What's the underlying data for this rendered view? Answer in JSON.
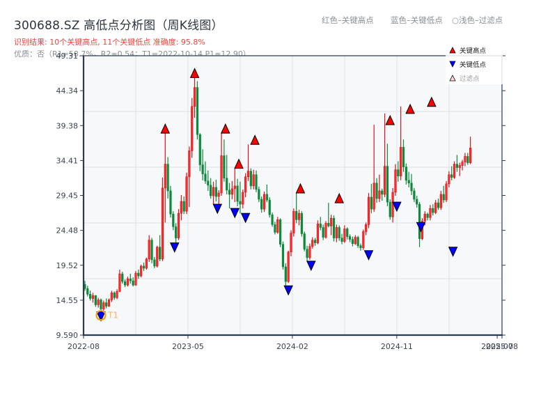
{
  "header": {
    "title": "300688.SZ 高低点分析图（周K线图）",
    "summary": "识别结果: 10个关键高点, 11个关键低点  准确度: 95.8%",
    "quality": "优质：否（R1=58.7%，R2=0.54；T1=2022-10-14 P1=12.90）",
    "legend_top": {
      "red": "红色–关键高点",
      "blue": "蓝色–关键低点",
      "light": "○浅色–过滤点"
    }
  },
  "colors": {
    "up": "#d9141b",
    "down": "#0b8a3a",
    "high_marker": "#ff0000",
    "low_marker": "#0000ff",
    "t1_ring": "#f29c1f",
    "axis": "#2c3a4e",
    "grid": "#e3e6ea",
    "plot_bg": "#f7f8fa"
  },
  "chart_data": {
    "type": "candlestick",
    "title": "300688.SZ 高低点分析图（周K线图）",
    "xlabel": "",
    "ylabel": "",
    "ylim": [
      9.59,
      49.31
    ],
    "yticks": [
      "9.590",
      "14.55",
      "19.52",
      "24.48",
      "29.45",
      "34.41",
      "39.38",
      "44.34",
      "49.31"
    ],
    "ytick_values": [
      9.59,
      14.55,
      19.52,
      24.48,
      29.45,
      34.41,
      39.38,
      44.34,
      49.31
    ],
    "xticks": [
      "2022-08",
      "2023-05",
      "2024-02",
      "2024-11",
      "2025-07",
      "2025-08"
    ],
    "xtick_weeks": [
      0,
      39,
      78,
      117,
      154.5,
      156.3
    ],
    "grid": true,
    "legend": {
      "position": "upper right",
      "entries": [
        "关键高点",
        "关键低点",
        "过滤点"
      ]
    },
    "annotation": {
      "label": "T1",
      "week": 6.5,
      "price": 12.9
    },
    "key_highs": [
      {
        "week": 30.5,
        "price": 38.3
      },
      {
        "week": 41.5,
        "price": 46.2
      },
      {
        "week": 53,
        "price": 38.3
      },
      {
        "week": 58,
        "price": 33.3
      },
      {
        "week": 64,
        "price": 36.7
      },
      {
        "week": 81,
        "price": 29.8
      },
      {
        "week": 95.5,
        "price": 28.4
      },
      {
        "week": 114.5,
        "price": 39.5
      },
      {
        "week": 122,
        "price": 41.1
      },
      {
        "week": 130,
        "price": 42.1
      }
    ],
    "key_lows": [
      {
        "week": 6.5,
        "price": 12.9
      },
      {
        "week": 34,
        "price": 22.7
      },
      {
        "week": 50,
        "price": 28.2
      },
      {
        "week": 56.5,
        "price": 27.6
      },
      {
        "week": 60.5,
        "price": 26.9
      },
      {
        "week": 76.5,
        "price": 16.6
      },
      {
        "week": 85,
        "price": 20.1
      },
      {
        "week": 106.5,
        "price": 21.6
      },
      {
        "week": 117,
        "price": 28.5
      },
      {
        "week": 126,
        "price": 25.6
      },
      {
        "week": 138,
        "price": 22.1
      }
    ],
    "candles": [
      [
        16.8,
        17.3,
        15.9,
        16.2
      ],
      [
        16.2,
        16.6,
        15.1,
        15.4
      ],
      [
        15.4,
        15.9,
        14.5,
        14.8
      ],
      [
        14.8,
        15.6,
        14.2,
        15.2
      ],
      [
        15.2,
        15.3,
        13.6,
        13.9
      ],
      [
        13.9,
        14.9,
        13.5,
        14.6
      ],
      [
        14.6,
        14.8,
        12.9,
        13.3
      ],
      [
        13.3,
        14.5,
        13.1,
        14.2
      ],
      [
        14.2,
        14.8,
        13.4,
        13.7
      ],
      [
        13.7,
        14.8,
        13.6,
        14.6
      ],
      [
        14.6,
        15.9,
        14.3,
        15.6
      ],
      [
        15.6,
        15.8,
        14.6,
        14.9
      ],
      [
        14.9,
        16.1,
        14.7,
        15.8
      ],
      [
        15.8,
        18.9,
        15.7,
        18.3
      ],
      [
        18.3,
        18.6,
        16.9,
        17.2
      ],
      [
        17.2,
        17.5,
        16.4,
        16.7
      ],
      [
        16.7,
        17.9,
        16.5,
        17.6
      ],
      [
        17.6,
        18.3,
        16.9,
        17.3
      ],
      [
        17.3,
        17.8,
        16.5,
        16.7
      ],
      [
        16.7,
        18.7,
        16.6,
        18.4
      ],
      [
        18.4,
        18.9,
        17.6,
        18.0
      ],
      [
        18.0,
        19.6,
        17.8,
        19.4
      ],
      [
        19.4,
        19.9,
        18.7,
        19.1
      ],
      [
        19.1,
        20.6,
        18.9,
        20.4
      ],
      [
        20.4,
        23.8,
        20.0,
        23.1
      ],
      [
        23.1,
        23.4,
        19.8,
        20.3
      ],
      [
        20.3,
        20.7,
        19.1,
        19.4
      ],
      [
        19.4,
        22.3,
        19.2,
        22.1
      ],
      [
        22.1,
        23.8,
        20.1,
        20.4
      ],
      [
        20.4,
        32.0,
        20.1,
        30.5
      ],
      [
        30.5,
        38.3,
        25.6,
        33.9
      ],
      [
        33.9,
        34.9,
        29.0,
        30.1
      ],
      [
        30.1,
        30.8,
        26.3,
        26.8
      ],
      [
        26.8,
        27.2,
        24.5,
        25.0
      ],
      [
        25.0,
        25.5,
        22.7,
        23.4
      ],
      [
        23.4,
        27.5,
        23.1,
        26.9
      ],
      [
        26.9,
        29.5,
        25.9,
        28.6
      ],
      [
        28.6,
        29.3,
        26.8,
        27.2
      ],
      [
        27.2,
        32.7,
        26.8,
        32.1
      ],
      [
        32.1,
        36.4,
        27.8,
        35.8
      ],
      [
        35.8,
        43.3,
        34.8,
        42.1
      ],
      [
        42.1,
        46.2,
        40.5,
        44.8
      ],
      [
        44.8,
        45.7,
        37.4,
        38.1
      ],
      [
        38.1,
        38.3,
        32.9,
        33.8
      ],
      [
        33.8,
        36.0,
        31.6,
        32.5
      ],
      [
        32.5,
        34.3,
        31.1,
        31.5
      ],
      [
        31.5,
        33.0,
        30.1,
        30.9
      ],
      [
        30.9,
        31.9,
        29.0,
        29.4
      ],
      [
        29.4,
        31.4,
        28.2,
        30.6
      ],
      [
        30.6,
        31.7,
        28.6,
        29.3
      ],
      [
        29.3,
        30.2,
        28.0,
        29.8
      ],
      [
        29.8,
        38.3,
        29.4,
        35.1
      ],
      [
        35.1,
        37.4,
        31.4,
        31.9
      ],
      [
        31.9,
        35.2,
        29.6,
        30.2
      ],
      [
        30.2,
        31.2,
        27.6,
        29.6
      ],
      [
        29.6,
        31.5,
        28.9,
        30.4
      ],
      [
        30.4,
        33.3,
        28.5,
        30.8
      ],
      [
        30.8,
        31.8,
        27.9,
        28.6
      ],
      [
        28.6,
        31.4,
        26.9,
        28.2
      ],
      [
        28.2,
        30.3,
        27.6,
        29.9
      ],
      [
        29.9,
        32.6,
        29.2,
        32.1
      ],
      [
        32.1,
        36.7,
        31.5,
        32.9
      ],
      [
        32.9,
        33.3,
        30.3,
        30.8
      ],
      [
        30.8,
        33.1,
        30.3,
        32.4
      ],
      [
        32.4,
        33.0,
        29.9,
        30.3
      ],
      [
        30.3,
        30.7,
        28.5,
        28.9
      ],
      [
        28.9,
        29.3,
        27.0,
        27.5
      ],
      [
        27.5,
        30.0,
        27.1,
        29.6
      ],
      [
        29.6,
        31.0,
        28.5,
        28.8
      ],
      [
        28.8,
        29.2,
        26.3,
        26.7
      ],
      [
        26.7,
        27.0,
        25.0,
        25.3
      ],
      [
        25.3,
        25.7,
        23.9,
        24.2
      ],
      [
        24.2,
        26.4,
        24.0,
        26.0
      ],
      [
        26.0,
        26.2,
        22.1,
        22.5
      ],
      [
        22.5,
        22.9,
        18.9,
        19.3
      ],
      [
        19.3,
        19.8,
        16.6,
        17.2
      ],
      [
        17.2,
        21.6,
        17.0,
        21.4
      ],
      [
        21.4,
        24.5,
        20.8,
        24.1
      ],
      [
        24.1,
        27.6,
        23.6,
        27.2
      ],
      [
        27.2,
        29.8,
        25.5,
        26.0
      ],
      [
        26.0,
        27.4,
        25.2,
        26.9
      ],
      [
        26.9,
        27.2,
        23.6,
        24.0
      ],
      [
        24.0,
        24.3,
        21.5,
        21.8
      ],
      [
        21.8,
        22.3,
        20.1,
        20.6
      ],
      [
        20.6,
        22.6,
        20.3,
        22.2
      ],
      [
        22.2,
        23.5,
        21.9,
        23.1
      ],
      [
        23.1,
        23.4,
        22.3,
        22.7
      ],
      [
        22.7,
        25.9,
        22.5,
        25.4
      ],
      [
        25.4,
        26.4,
        24.5,
        24.9
      ],
      [
        24.9,
        25.3,
        23.1,
        23.5
      ],
      [
        23.5,
        25.8,
        23.3,
        25.5
      ],
      [
        25.5,
        28.4,
        24.9,
        25.1
      ],
      [
        25.1,
        26.7,
        23.8,
        26.2
      ],
      [
        26.2,
        26.6,
        22.9,
        23.4
      ],
      [
        23.4,
        25.3,
        22.8,
        24.9
      ],
      [
        24.9,
        25.2,
        23.0,
        23.4
      ],
      [
        23.4,
        24.0,
        22.5,
        22.9
      ],
      [
        22.9,
        25.2,
        22.7,
        24.7
      ],
      [
        24.7,
        24.9,
        23.2,
        23.6
      ],
      [
        23.6,
        23.9,
        22.8,
        23.2
      ],
      [
        23.2,
        23.6,
        22.2,
        22.6
      ],
      [
        22.6,
        23.8,
        22.4,
        23.5
      ],
      [
        23.5,
        23.7,
        22.0,
        22.3
      ],
      [
        22.3,
        22.6,
        21.6,
        22.0
      ],
      [
        22.0,
        24.6,
        21.7,
        24.3
      ],
      [
        24.3,
        25.6,
        23.8,
        25.3
      ],
      [
        25.3,
        29.8,
        24.8,
        29.2
      ],
      [
        29.2,
        31.1,
        26.9,
        27.5
      ],
      [
        27.5,
        39.5,
        27.1,
        31.2
      ],
      [
        31.2,
        31.9,
        28.4,
        29.0
      ],
      [
        29.0,
        32.4,
        28.5,
        30.1
      ],
      [
        30.1,
        30.4,
        28.7,
        29.6
      ],
      [
        29.6,
        41.1,
        29.2,
        33.6
      ],
      [
        33.6,
        36.8,
        27.9,
        28.5
      ],
      [
        28.5,
        28.9,
        26.0,
        26.4
      ],
      [
        26.4,
        30.5,
        25.6,
        29.9
      ],
      [
        29.9,
        33.9,
        29.4,
        33.1
      ],
      [
        33.1,
        34.3,
        31.4,
        32.2
      ],
      [
        32.2,
        42.1,
        31.6,
        36.3
      ],
      [
        36.3,
        37.4,
        32.8,
        33.5
      ],
      [
        33.5,
        34.0,
        31.0,
        31.6
      ],
      [
        31.6,
        32.8,
        30.6,
        31.2
      ],
      [
        31.2,
        32.5,
        29.5,
        30.1
      ],
      [
        30.1,
        30.5,
        28.5,
        28.9
      ],
      [
        28.9,
        29.4,
        27.7,
        28.2
      ],
      [
        28.2,
        28.5,
        22.1,
        23.3
      ],
      [
        23.3,
        26.2,
        23.1,
        25.8
      ],
      [
        25.8,
        27.2,
        25.2,
        26.8
      ],
      [
        26.8,
        27.0,
        25.9,
        26.3
      ],
      [
        26.3,
        28.1,
        25.9,
        27.6
      ],
      [
        27.6,
        28.2,
        26.6,
        27.0
      ],
      [
        27.0,
        28.8,
        26.8,
        28.4
      ],
      [
        28.4,
        29.0,
        27.4,
        27.7
      ],
      [
        27.7,
        30.1,
        27.4,
        29.6
      ],
      [
        29.6,
        30.8,
        28.4,
        28.8
      ],
      [
        28.8,
        31.5,
        28.5,
        31.1
      ],
      [
        31.1,
        32.9,
        30.6,
        32.4
      ],
      [
        32.4,
        33.6,
        31.6,
        32.0
      ],
      [
        32.0,
        34.3,
        31.8,
        33.9
      ],
      [
        33.9,
        35.2,
        32.8,
        33.4
      ],
      [
        33.4,
        34.1,
        32.2,
        33.7
      ],
      [
        33.7,
        34.5,
        33.0,
        34.2
      ],
      [
        34.2,
        35.5,
        33.6,
        35.0
      ],
      [
        35.0,
        35.5,
        33.8,
        34.1
      ],
      [
        34.1,
        37.8,
        33.9,
        36.2
      ]
    ]
  }
}
